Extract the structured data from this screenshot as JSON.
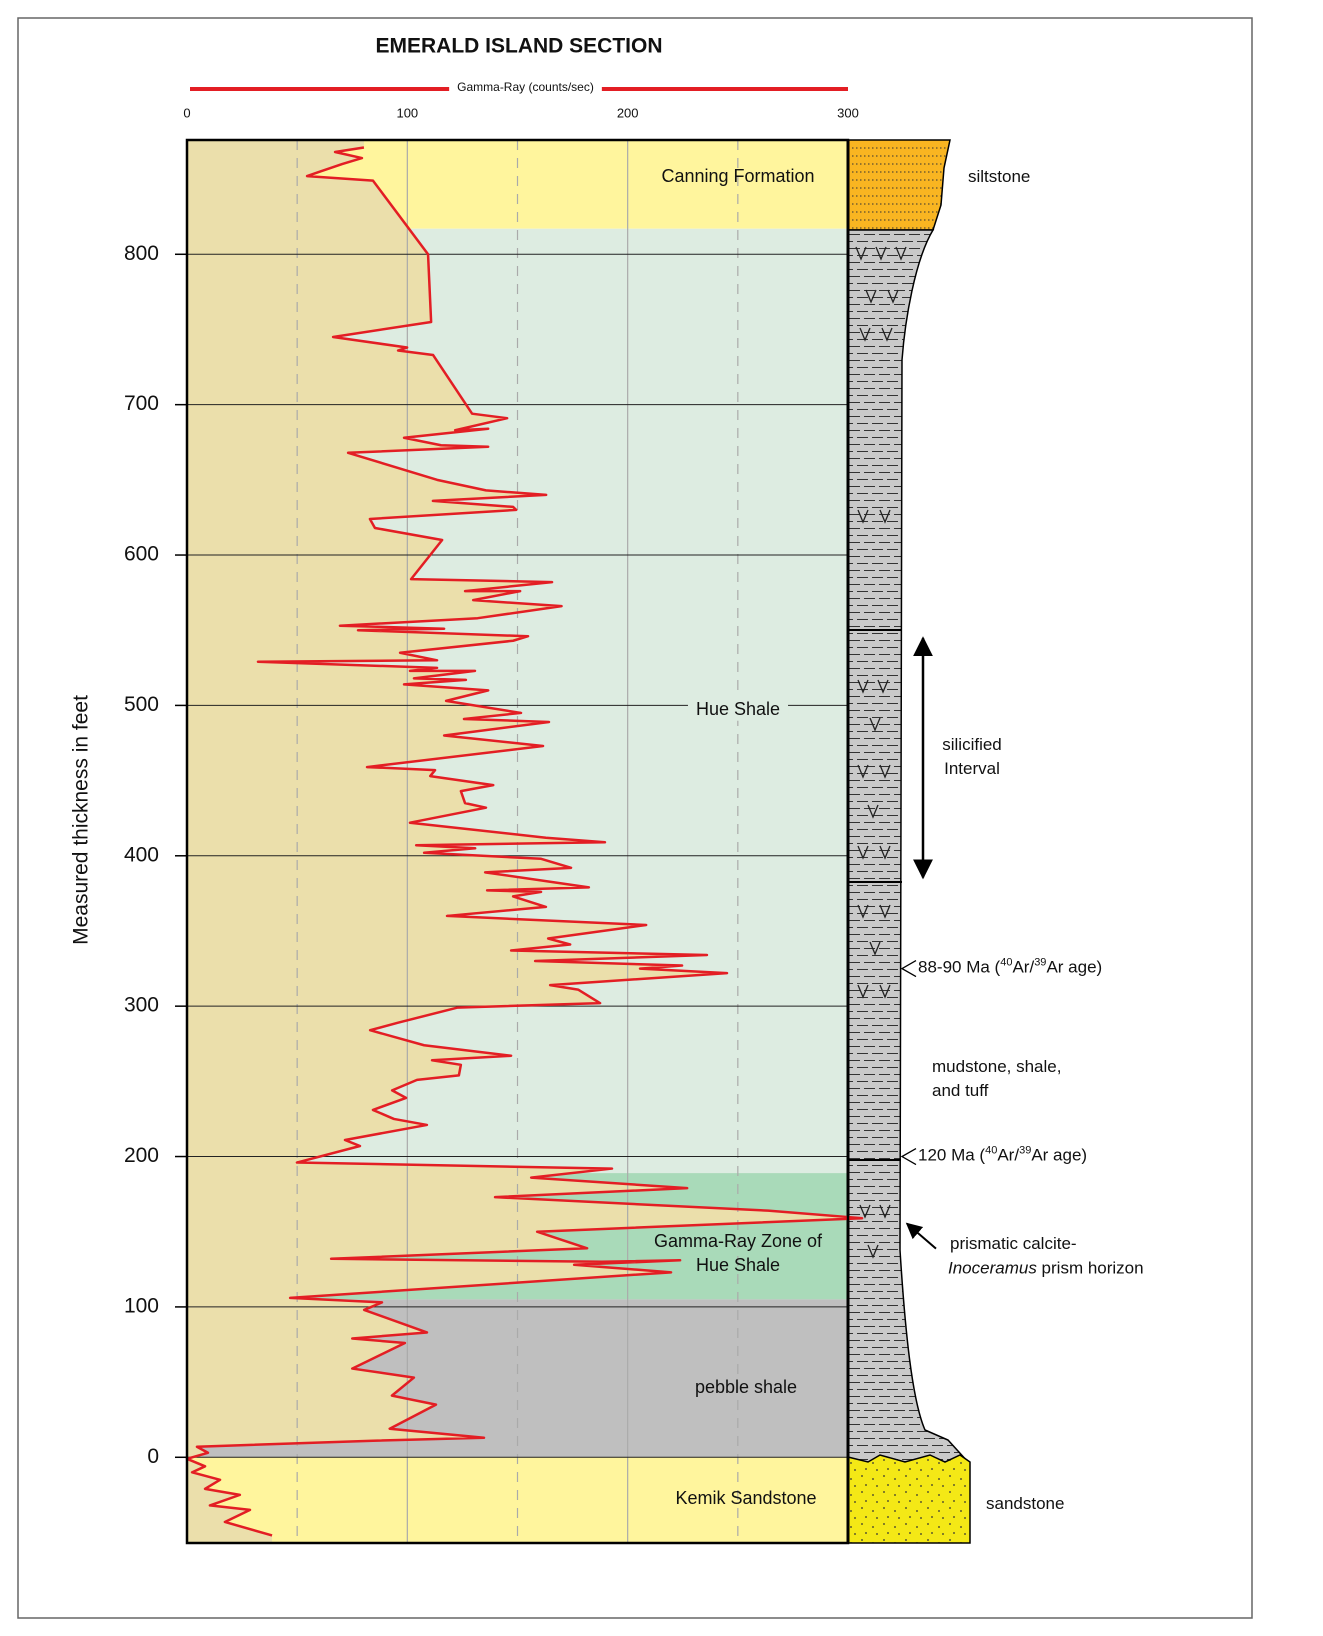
{
  "chart_data": {
    "type": "line",
    "title": "EMERALD ISLAND SECTION",
    "xlabel": "Gamma-Ray (counts/sec)",
    "ylabel": "Measured thickness in feet",
    "xlim": [
      0,
      300
    ],
    "xticks": [
      0,
      100,
      200,
      300
    ],
    "x_minor_grid": [
      50,
      150,
      250
    ],
    "ylim": [
      -57,
      876
    ],
    "yticks": [
      0,
      100,
      200,
      300,
      400,
      500,
      600,
      700,
      800
    ],
    "grid": true,
    "series": [
      {
        "color": "#e31e24",
        "x": [
          80.3,
          67.2,
          79.4,
          70.4,
          60.4,
          54.5,
          84.4,
          109.4,
          110.8,
          66.3,
          99.9,
          95.8,
          111.7,
          129.4,
          145.3,
          121.7,
          136.7,
          98.5,
          115.3,
          136.7,
          73.1,
          113.5,
          135.7,
          163,
          111.6,
          148,
          149.4,
          83,
          85.3,
          115.8,
          101.7,
          165.7,
          126.2,
          151.2,
          129.9,
          170,
          131.9,
          69.4,
          116.7,
          77.6,
          154.8,
          148,
          96.7,
          113.5,
          32.2,
          113.5,
          101.2,
          130.7,
          103,
          126.6,
          98.5,
          136.7,
          117.6,
          151.6,
          125.7,
          164.3,
          116.7,
          161.6,
          81.7,
          112.6,
          110.4,
          139,
          124.3,
          126.2,
          135.7,
          101.2,
          162.9,
          189.7,
          104,
          130.8,
          107.6,
          160.7,
          174.3,
          135.3,
          182.4,
          136.2,
          160.7,
          148,
          162.9,
          118,
          208.4,
          163.9,
          173.9,
          147.1,
          236,
          158,
          224.7,
          205.6,
          245.1,
          164.8,
          177.5,
          187.5,
          122.6,
          95.8,
          83.1,
          107.6,
          147.1,
          111.2,
          124.3,
          123.4,
          104.4,
          93.1,
          99.4,
          84.4,
          93.9,
          108.9,
          71.7,
          78.5,
          49.9,
          192.9,
          156.2,
          227,
          139.8,
          263.7,
          306.4,
          158.9,
          181.6,
          65.4,
          188.4,
          223.8,
          175.7,
          219.7,
          46.8,
          88.5,
          80.4,
          108.9,
          75,
          98.9,
          75,
          103,
          93,
          113,
          92,
          134.8,
          84.4,
          4.5,
          9.5,
          0,
          8.2,
          2.3,
          15,
          8.2,
          24,
          10.4,
          28.6,
          17.2,
          38.6
        ],
        "y": [
          871,
          868,
          864,
          860,
          855,
          852,
          849,
          800,
          755,
          745,
          738,
          736,
          733,
          694,
          691,
          683,
          684,
          678,
          673,
          672,
          668,
          650,
          643,
          640,
          636,
          632,
          630,
          624,
          618,
          610,
          584,
          582,
          576,
          576,
          570,
          566,
          558,
          553,
          551,
          550,
          546,
          543,
          535,
          530,
          529,
          525,
          523,
          523,
          518,
          517,
          514,
          510,
          503,
          495,
          491,
          489,
          480,
          473,
          459,
          457,
          453,
          447,
          443,
          435,
          432,
          422,
          412,
          409,
          407,
          405,
          402,
          398,
          392,
          389,
          379,
          377,
          376,
          373,
          366,
          360,
          354,
          345,
          341,
          337,
          334,
          330,
          327,
          325,
          322,
          314,
          311,
          302,
          299,
          289,
          284,
          274,
          267,
          264,
          261,
          254,
          251,
          244,
          239,
          231,
          225,
          221,
          211,
          207,
          196,
          192,
          186,
          179,
          173,
          164,
          159,
          150,
          139,
          132,
          130,
          131,
          128,
          123,
          106,
          103,
          98,
          83,
          79,
          76,
          59,
          53,
          41,
          35,
          19,
          13,
          11,
          7,
          3,
          -1,
          -6,
          -10,
          -15,
          -21,
          -25,
          -32,
          -35,
          -43,
          -52
        ]
      }
    ],
    "background_color": "#ebdfab",
    "zones": [
      {
        "label": [
          "Canning Formation"
        ],
        "bottom": 817,
        "top": 876,
        "color": "#fff59d"
      },
      {
        "label": [
          "Hue Shale"
        ],
        "bottom": 189,
        "top": 817,
        "color": "#ddece1"
      },
      {
        "label": [
          "Gamma-Ray Zone of",
          "Hue Shale"
        ],
        "bottom": 105,
        "top": 189,
        "color": "#a9dab9"
      },
      {
        "label": [
          "pebble shale"
        ],
        "bottom": 0,
        "top": 105,
        "color": "#bfbfbf"
      },
      {
        "label": [
          "Kemik Sandstone"
        ],
        "bottom": -57,
        "top": 0,
        "color": "#fff59d"
      }
    ]
  },
  "lithology": [
    {
      "label": [
        "siltstone"
      ]
    },
    {
      "label": [
        "mudstone, shale,",
        "and tuff"
      ]
    },
    {
      "label": [
        "sandstone"
      ]
    }
  ],
  "silicified_interval": {
    "label": [
      "silicified",
      "Interval"
    ],
    "top": 550,
    "bottom": 383
  },
  "ages": [
    {
      "depth": 325,
      "parts": [
        "88-90 Ma (",
        "40",
        "Ar/",
        "39",
        "Ar age)"
      ]
    },
    {
      "depth": 200,
      "parts": [
        "120 Ma (",
        "40",
        "Ar/",
        "39",
        "Ar age)"
      ]
    }
  ],
  "prism_horizon": {
    "depth": 162,
    "line1": "prismatic calcite-",
    "italic": "Inoceramus",
    "rest": " prism horizon"
  }
}
